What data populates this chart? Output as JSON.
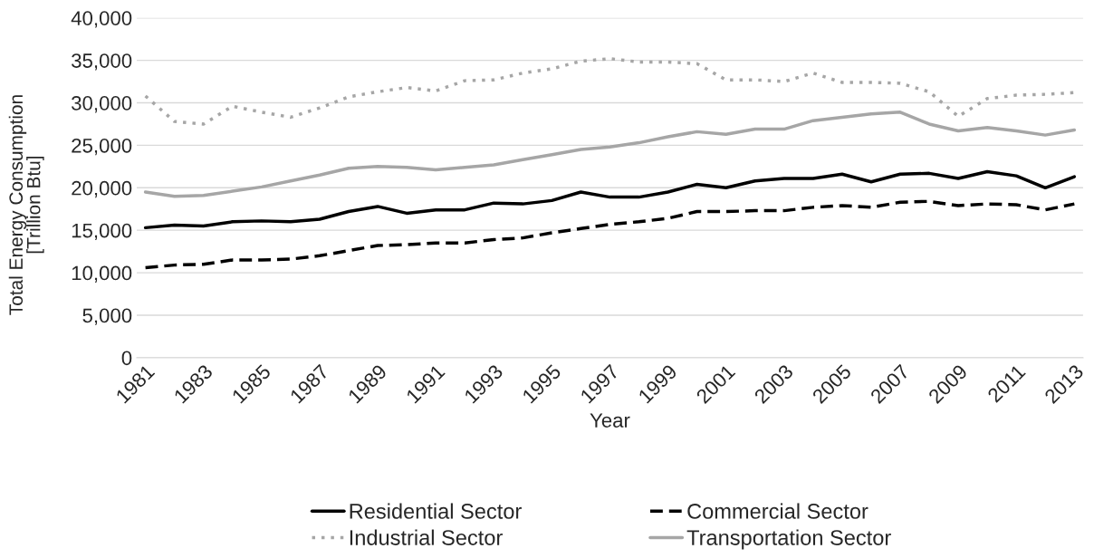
{
  "chart_data": {
    "type": "line",
    "xlabel": "Year",
    "ylabel": "Total Energy Consumption\n[Trillion Btu]",
    "categories": [
      "1981",
      null,
      "1983",
      null,
      "1985",
      null,
      "1987",
      null,
      "1989",
      null,
      "1991",
      null,
      "1993",
      null,
      "1995",
      null,
      "1997",
      null,
      "1999",
      null,
      "2001",
      null,
      "2003",
      null,
      "2005",
      null,
      "2007",
      null,
      "2009",
      null,
      "2011",
      null,
      "2013"
    ],
    "series": [
      {
        "name": "Residential Sector",
        "color": "#000000",
        "line_style": "solid",
        "values": [
          15300,
          15600,
          15500,
          16000,
          16100,
          16000,
          16300,
          17200,
          17800,
          17000,
          17400,
          17400,
          18200,
          18100,
          18500,
          19500,
          18900,
          18900,
          19500,
          20400,
          20000,
          20800,
          21100,
          21100,
          21600,
          20700,
          21600,
          21700,
          21100,
          21900,
          21400,
          20000,
          21300
        ]
      },
      {
        "name": "Commercial Sector",
        "color": "#000000",
        "line_style": "dashed",
        "values": [
          10600,
          10900,
          11000,
          11500,
          11500,
          11600,
          12000,
          12600,
          13200,
          13300,
          13500,
          13500,
          13900,
          14100,
          14700,
          15200,
          15700,
          16000,
          16400,
          17200,
          17200,
          17300,
          17300,
          17700,
          17900,
          17700,
          18300,
          18400,
          17900,
          18100,
          18000,
          17400,
          18100
        ]
      },
      {
        "name": "Industrial Sector",
        "color": "#a6a6a6",
        "line_style": "dotted",
        "values": [
          30800,
          27800,
          27500,
          29600,
          28900,
          28300,
          29400,
          30700,
          31300,
          31800,
          31400,
          32600,
          32700,
          33500,
          34000,
          34900,
          35200,
          34800,
          34800,
          34600,
          32700,
          32700,
          32500,
          33500,
          32400,
          32400,
          32300,
          31300,
          28400,
          30500,
          30900,
          31000,
          31200
        ]
      },
      {
        "name": "Transportation Sector",
        "color": "#a6a6a6",
        "line_style": "solid",
        "values": [
          19500,
          19000,
          19100,
          19600,
          20100,
          20800,
          21500,
          22300,
          22500,
          22400,
          22100,
          22400,
          22700,
          23300,
          23900,
          24500,
          24800,
          25300,
          26000,
          26600,
          26300,
          26900,
          26900,
          27900,
          28300,
          28700,
          28900,
          27500,
          26700,
          27100,
          26700,
          26200,
          26800
        ]
      }
    ],
    "ylim": [
      0,
      40000
    ],
    "yticks": [
      {
        "value": 0,
        "label": "0"
      },
      {
        "value": 5000,
        "label": "5,000"
      },
      {
        "value": 10000,
        "label": "10,000"
      },
      {
        "value": 15000,
        "label": "15,000"
      },
      {
        "value": 20000,
        "label": "20,000"
      },
      {
        "value": 25000,
        "label": "25,000"
      },
      {
        "value": 30000,
        "label": "30,000"
      },
      {
        "value": 35000,
        "label": "35,000"
      },
      {
        "value": 40000,
        "label": "40,000"
      }
    ],
    "grid": "y",
    "legend": "bottom"
  }
}
